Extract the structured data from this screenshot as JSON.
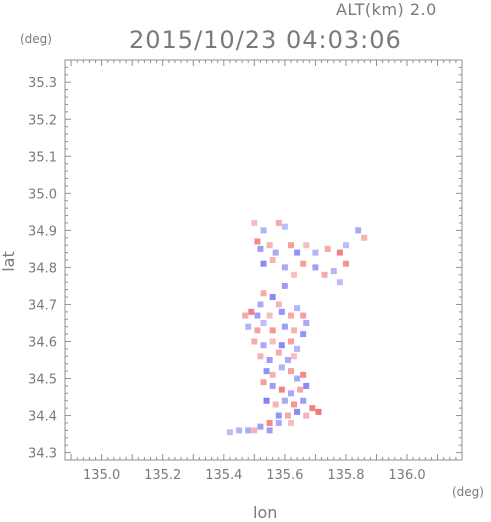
{
  "header": {
    "altitude_label": "ALT(km) 2.0",
    "timestamp": "2015/10/23 04:03:06"
  },
  "chart_data": {
    "type": "heatmap",
    "title": "2015/10/23 04:03:06",
    "subtitle": "ALT(km) 2.0",
    "xlabel": "lon",
    "ylabel": "lat",
    "x_unit": "(deg)",
    "y_unit": "(deg)",
    "xlim": [
      134.88,
      136.18
    ],
    "ylim": [
      34.28,
      35.36
    ],
    "x_ticks": [
      135.0,
      135.2,
      135.4,
      135.6,
      135.8,
      136.0
    ],
    "x_tick_labels": [
      "135.0",
      "135.2",
      "135.4",
      "135.6",
      "135.8",
      "136.0"
    ],
    "y_ticks": [
      34.3,
      34.4,
      34.5,
      34.6,
      34.7,
      34.8,
      34.9,
      35.0,
      35.1,
      35.2,
      35.3
    ],
    "y_tick_labels": [
      "34.3",
      "34.4",
      "34.5",
      "34.6",
      "34.7",
      "34.8",
      "34.9",
      "35.0",
      "35.1",
      "35.2",
      "35.3"
    ],
    "grid": false,
    "colors": {
      "positive": "#f07070",
      "negative": "#6f6ff0",
      "axis": "#909090"
    },
    "cells": [
      [
        135.5,
        34.92,
        0.3
      ],
      [
        135.53,
        34.9,
        -0.4
      ],
      [
        135.58,
        34.92,
        0.5
      ],
      [
        135.6,
        34.91,
        -0.3
      ],
      [
        135.51,
        34.87,
        0.8
      ],
      [
        135.52,
        34.85,
        -0.6
      ],
      [
        135.55,
        34.86,
        0.4
      ],
      [
        135.57,
        34.84,
        -0.5
      ],
      [
        135.62,
        34.86,
        0.6
      ],
      [
        135.64,
        34.84,
        -0.7
      ],
      [
        135.67,
        34.86,
        0.3
      ],
      [
        135.7,
        34.84,
        -0.4
      ],
      [
        135.74,
        34.85,
        0.5
      ],
      [
        135.78,
        34.84,
        0.9
      ],
      [
        135.8,
        34.86,
        -0.3
      ],
      [
        135.84,
        34.9,
        -0.5
      ],
      [
        135.86,
        34.88,
        0.4
      ],
      [
        135.53,
        34.81,
        -0.8
      ],
      [
        135.56,
        34.82,
        0.4
      ],
      [
        135.6,
        34.8,
        -0.5
      ],
      [
        135.66,
        34.81,
        0.6
      ],
      [
        135.7,
        34.8,
        -0.6
      ],
      [
        135.73,
        34.78,
        0.5
      ],
      [
        135.76,
        34.79,
        -0.4
      ],
      [
        135.8,
        34.81,
        0.7
      ],
      [
        135.78,
        34.76,
        -0.3
      ],
      [
        135.63,
        34.78,
        0.3
      ],
      [
        135.6,
        34.75,
        -0.6
      ],
      [
        135.53,
        34.73,
        0.5
      ],
      [
        135.56,
        34.72,
        -0.8
      ],
      [
        135.58,
        34.7,
        0.4
      ],
      [
        135.52,
        34.7,
        -0.5
      ],
      [
        135.49,
        34.68,
        0.9
      ],
      [
        135.47,
        34.67,
        0.5
      ],
      [
        135.51,
        34.67,
        -0.6
      ],
      [
        135.55,
        34.67,
        0.3
      ],
      [
        135.59,
        34.68,
        -0.7
      ],
      [
        135.62,
        34.67,
        0.5
      ],
      [
        135.64,
        34.69,
        -0.4
      ],
      [
        135.66,
        34.67,
        0.6
      ],
      [
        135.67,
        34.65,
        -0.5
      ],
      [
        135.48,
        34.64,
        -0.4
      ],
      [
        135.51,
        34.63,
        0.6
      ],
      [
        135.53,
        34.65,
        -0.3
      ],
      [
        135.56,
        34.63,
        0.7
      ],
      [
        135.6,
        34.64,
        -0.6
      ],
      [
        135.63,
        34.63,
        0.4
      ],
      [
        135.66,
        34.62,
        -0.7
      ],
      [
        135.5,
        34.6,
        0.5
      ],
      [
        135.53,
        34.59,
        -0.5
      ],
      [
        135.56,
        34.6,
        0.3
      ],
      [
        135.59,
        34.59,
        -0.8
      ],
      [
        135.62,
        34.6,
        0.6
      ],
      [
        135.64,
        34.58,
        -0.4
      ],
      [
        135.52,
        34.56,
        0.4
      ],
      [
        135.55,
        34.55,
        -0.6
      ],
      [
        135.58,
        34.57,
        0.5
      ],
      [
        135.61,
        34.55,
        -0.5
      ],
      [
        135.63,
        34.56,
        0.3
      ],
      [
        135.54,
        34.52,
        -0.7
      ],
      [
        135.56,
        34.51,
        0.4
      ],
      [
        135.59,
        34.53,
        -0.4
      ],
      [
        135.62,
        34.52,
        0.6
      ],
      [
        135.64,
        34.5,
        -0.5
      ],
      [
        135.66,
        34.51,
        0.8
      ],
      [
        135.53,
        34.49,
        0.6
      ],
      [
        135.56,
        34.48,
        -0.6
      ],
      [
        135.59,
        34.47,
        0.9
      ],
      [
        135.62,
        34.46,
        -0.5
      ],
      [
        135.65,
        34.47,
        0.5
      ],
      [
        135.67,
        34.48,
        -0.8
      ],
      [
        135.54,
        34.44,
        -0.9
      ],
      [
        135.57,
        34.43,
        0.4
      ],
      [
        135.6,
        34.44,
        -0.5
      ],
      [
        135.63,
        34.43,
        0.7
      ],
      [
        135.66,
        34.44,
        -0.6
      ],
      [
        135.69,
        34.42,
        0.9
      ],
      [
        135.71,
        34.41,
        1.0
      ],
      [
        135.58,
        34.4,
        -0.7
      ],
      [
        135.61,
        34.4,
        0.5
      ],
      [
        135.64,
        34.41,
        -0.8
      ],
      [
        135.67,
        34.4,
        0.4
      ],
      [
        135.55,
        34.38,
        0.8
      ],
      [
        135.58,
        34.38,
        -0.5
      ],
      [
        135.62,
        34.38,
        0.3
      ],
      [
        135.52,
        34.37,
        -0.6
      ],
      [
        135.48,
        34.36,
        -0.5
      ],
      [
        135.45,
        34.36,
        -0.4
      ],
      [
        135.42,
        34.355,
        -0.3
      ],
      [
        135.5,
        34.36,
        0.4
      ],
      [
        135.55,
        34.36,
        -0.6
      ]
    ]
  }
}
